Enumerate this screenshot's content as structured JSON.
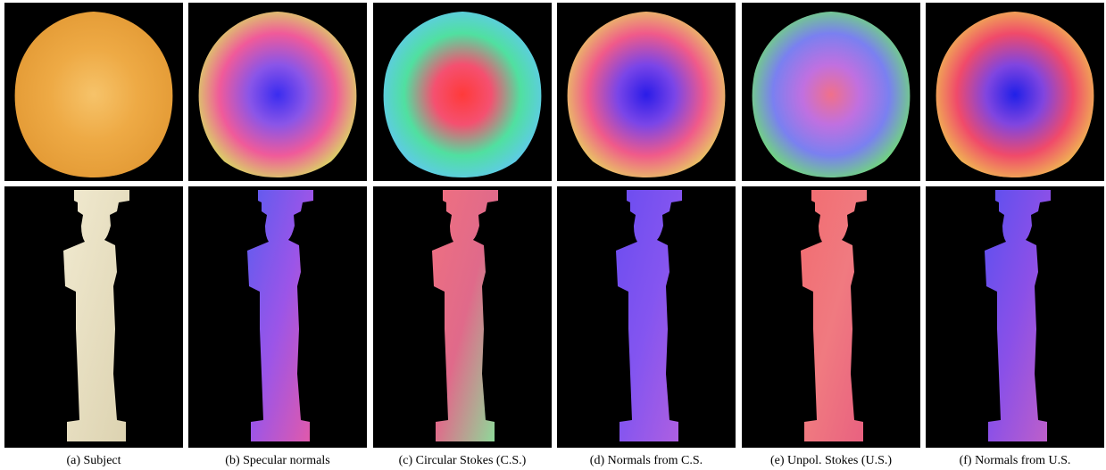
{
  "figure": {
    "captions": [
      "(a) Subject",
      "(b) Specular normals",
      "(c) Circular Stokes (C.S.)",
      "(d) Normals from C.S.",
      "(e) Unpol. Stokes (U.S.)",
      "(f) Normals from U.S."
    ]
  }
}
